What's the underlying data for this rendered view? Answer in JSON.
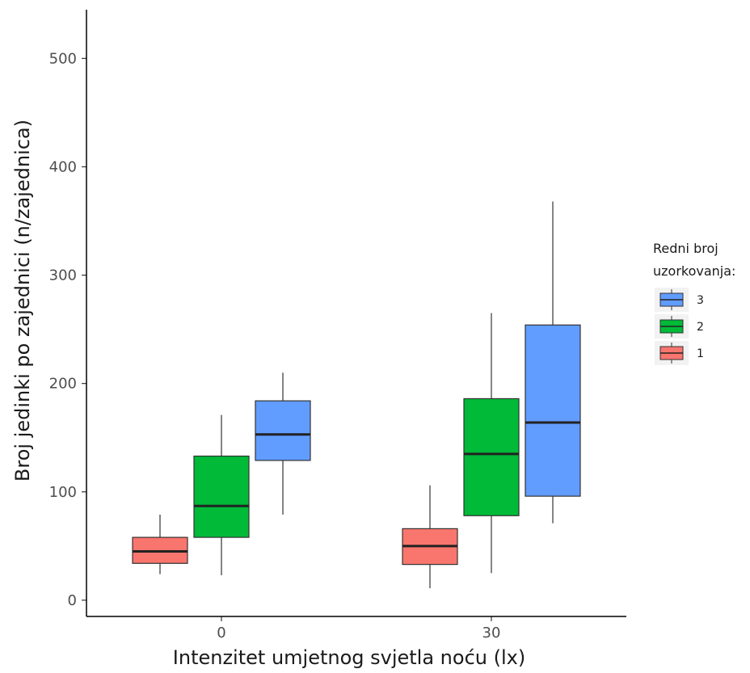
{
  "chart_data": {
    "type": "boxplot",
    "xlabel": "Intenzitet umjetnog svjetla noću (lx)",
    "ylabel": "Broj jedinki po zajednici (n/zajednica)",
    "categories": [
      "0",
      "30"
    ],
    "yticks": [
      0,
      100,
      200,
      300,
      400,
      500
    ],
    "ylim": [
      -15,
      545
    ],
    "grid": false,
    "legend": {
      "title_lines": [
        "Redni broj",
        "uzorkovanja:"
      ],
      "position": "right",
      "entries": [
        "3",
        "2",
        "1"
      ]
    },
    "series": [
      {
        "name": "1",
        "color": "#F8766D",
        "boxes": [
          {
            "category": "0",
            "min": 24,
            "q1": 34,
            "median": 45,
            "q3": 58,
            "max": 79
          },
          {
            "category": "30",
            "min": 11,
            "q1": 33,
            "median": 50,
            "q3": 66,
            "max": 106
          }
        ]
      },
      {
        "name": "2",
        "color": "#00BA38",
        "boxes": [
          {
            "category": "0",
            "min": 23,
            "q1": 58,
            "median": 87,
            "q3": 133,
            "max": 171
          },
          {
            "category": "30",
            "min": 25,
            "q1": 78,
            "median": 135,
            "q3": 186,
            "max": 265
          }
        ]
      },
      {
        "name": "3",
        "color": "#619CFF",
        "boxes": [
          {
            "category": "0",
            "min": 79,
            "q1": 129,
            "median": 153,
            "q3": 184,
            "max": 210
          },
          {
            "category": "30",
            "min": 71,
            "q1": 96,
            "median": 164,
            "q3": 254,
            "max": 368
          }
        ]
      }
    ]
  }
}
